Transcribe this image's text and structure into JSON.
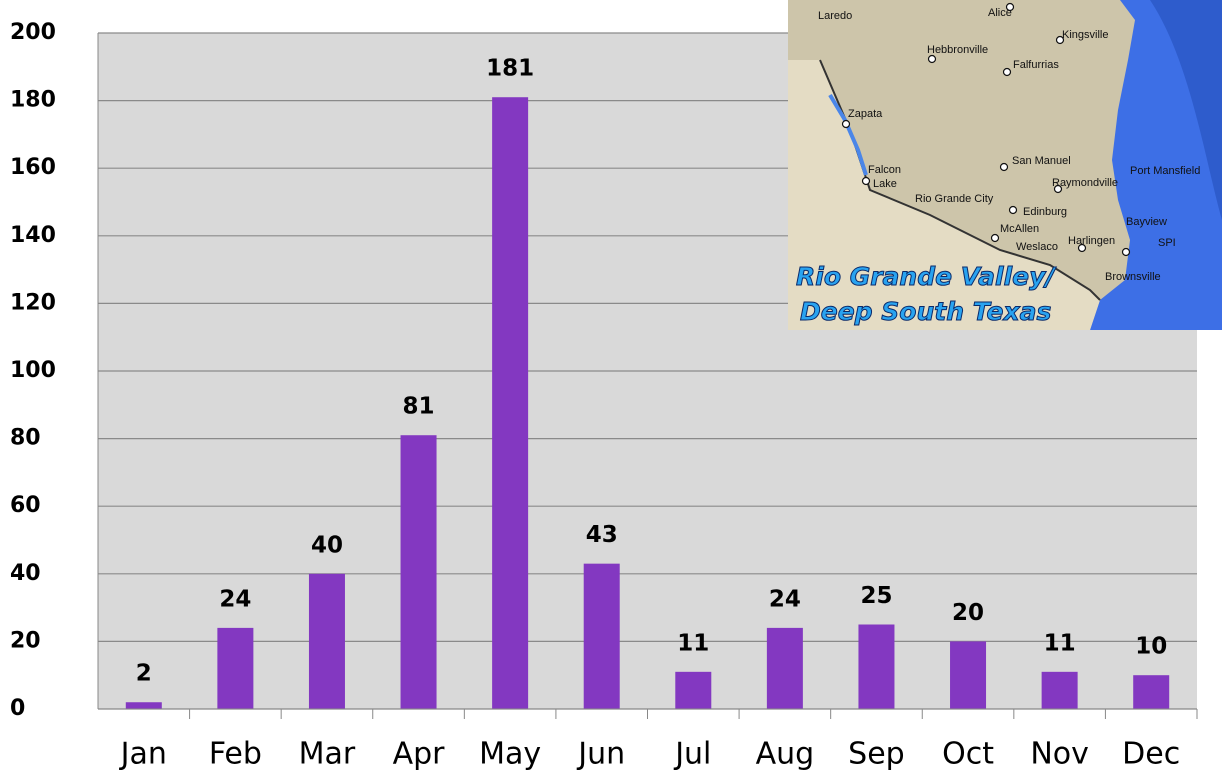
{
  "chart_data": {
    "type": "bar",
    "categories": [
      "Jan",
      "Feb",
      "Mar",
      "Apr",
      "May",
      "Jun",
      "Jul",
      "Aug",
      "Sep",
      "Oct",
      "Nov",
      "Dec"
    ],
    "values": [
      2,
      24,
      40,
      81,
      181,
      43,
      11,
      24,
      25,
      20,
      11,
      10
    ],
    "color": "#8338c1",
    "ylim": [
      0,
      200
    ],
    "yticks": [
      0,
      20,
      40,
      60,
      80,
      100,
      120,
      140,
      160,
      180,
      200
    ],
    "grid": true
  },
  "inset": {
    "title": [
      "Rio Grande Valley/",
      "Deep South Texas"
    ],
    "places": [
      "Laredo",
      "Alice",
      "Kingsville",
      "Hebbronville",
      "Falfurrias",
      "Zapata",
      "San Manuel",
      "Port Mansfield",
      "Falcon",
      "Lake",
      "Raymondville",
      "Rio Grande City",
      "Edinburg",
      "McAllen",
      "Bayview",
      "Weslaco",
      "Harlingen",
      "SPI",
      "Brownsville"
    ]
  }
}
